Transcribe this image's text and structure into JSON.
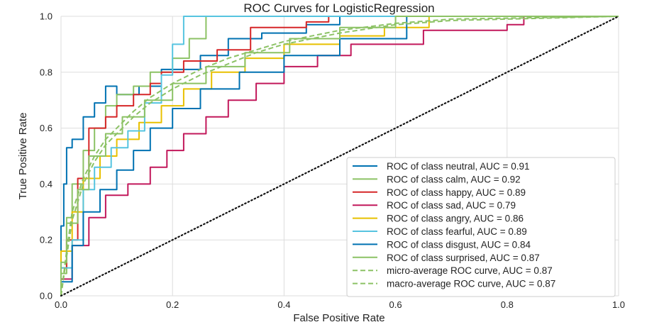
{
  "chart_data": {
    "type": "line",
    "title": "ROC Curves for LogisticRegression",
    "xlabel": "False Positive Rate",
    "ylabel": "True Positive Rate",
    "xlim": [
      0,
      1
    ],
    "ylim": [
      0,
      1
    ],
    "grid": true,
    "legend_position": "lower-right",
    "x_ticks": [
      0.0,
      0.2,
      0.4,
      0.6,
      0.8,
      1.0
    ],
    "x_tick_labels": [
      "0.0",
      "0.2",
      "0.4",
      "0.6",
      "0.8",
      "1.0"
    ],
    "y_ticks": [
      0.0,
      0.2,
      0.4,
      0.6,
      0.8,
      1.0
    ],
    "y_tick_labels": [
      "0.0",
      "0.2",
      "0.4",
      "0.6",
      "0.8",
      "1.0"
    ],
    "series": [
      {
        "name": "ROC of class neutral, AUC = 0.91",
        "color": "#0072B2",
        "dash": "solid",
        "x": [
          0,
          0,
          0.005,
          0.005,
          0.01,
          0.01,
          0.02,
          0.02,
          0.04,
          0.04,
          0.06,
          0.06,
          0.08,
          0.08,
          0.1,
          0.1,
          0.14,
          0.14,
          0.18,
          0.18,
          0.25,
          0.25,
          0.3,
          0.3,
          0.36,
          0.36,
          0.44,
          0.44,
          0.5,
          0.5,
          1.0
        ],
        "y": [
          0,
          0.25,
          0.25,
          0.4,
          0.4,
          0.53,
          0.53,
          0.56,
          0.56,
          0.64,
          0.64,
          0.69,
          0.69,
          0.75,
          0.75,
          0.72,
          0.72,
          0.75,
          0.75,
          0.81,
          0.81,
          0.86,
          0.86,
          0.92,
          0.92,
          0.94,
          0.94,
          0.97,
          0.97,
          1.0,
          1.0
        ]
      },
      {
        "name": "ROC of class calm, AUC = 0.92",
        "color": "#8CC265",
        "dash": "solid",
        "x": [
          0,
          0,
          0.01,
          0.01,
          0.02,
          0.02,
          0.04,
          0.04,
          0.06,
          0.06,
          0.08,
          0.08,
          0.1,
          0.1,
          0.13,
          0.13,
          0.16,
          0.16,
          0.2,
          0.2,
          0.23,
          0.23,
          0.26,
          0.26,
          1.0
        ],
        "y": [
          0,
          0.08,
          0.08,
          0.28,
          0.28,
          0.4,
          0.4,
          0.52,
          0.52,
          0.6,
          0.6,
          0.68,
          0.68,
          0.72,
          0.72,
          0.75,
          0.75,
          0.8,
          0.8,
          0.85,
          0.85,
          0.92,
          0.92,
          1.0,
          1.0
        ]
      },
      {
        "name": "ROC of class happy, AUC = 0.89",
        "color": "#D62728",
        "dash": "solid",
        "x": [
          0,
          0,
          0.01,
          0.01,
          0.03,
          0.03,
          0.05,
          0.05,
          0.08,
          0.08,
          0.1,
          0.1,
          0.13,
          0.13,
          0.16,
          0.16,
          0.18,
          0.18,
          0.22,
          0.22,
          0.28,
          0.28,
          0.34,
          0.34,
          0.44,
          0.44,
          0.48,
          0.48,
          1.0
        ],
        "y": [
          0,
          0.1,
          0.1,
          0.2,
          0.2,
          0.42,
          0.42,
          0.6,
          0.6,
          0.64,
          0.64,
          0.68,
          0.68,
          0.72,
          0.72,
          0.76,
          0.76,
          0.8,
          0.8,
          0.84,
          0.84,
          0.88,
          0.88,
          0.96,
          0.96,
          0.98,
          0.98,
          1.0,
          1.0
        ]
      },
      {
        "name": "ROC of class sad, AUC = 0.79",
        "color": "#C2185B",
        "dash": "solid",
        "x": [
          0,
          0,
          0.02,
          0.02,
          0.05,
          0.05,
          0.08,
          0.08,
          0.12,
          0.12,
          0.16,
          0.16,
          0.19,
          0.19,
          0.22,
          0.22,
          0.26,
          0.26,
          0.3,
          0.3,
          0.35,
          0.35,
          0.4,
          0.4,
          0.46,
          0.46,
          0.52,
          0.52,
          0.65,
          0.65,
          0.8,
          0.8,
          0.83,
          0.83,
          1.0
        ],
        "y": [
          0,
          0.06,
          0.06,
          0.18,
          0.18,
          0.28,
          0.28,
          0.36,
          0.36,
          0.4,
          0.4,
          0.46,
          0.46,
          0.52,
          0.52,
          0.58,
          0.58,
          0.64,
          0.64,
          0.7,
          0.7,
          0.76,
          0.76,
          0.82,
          0.82,
          0.86,
          0.86,
          0.9,
          0.9,
          0.95,
          0.95,
          0.97,
          0.97,
          1.0,
          1.0
        ]
      },
      {
        "name": "ROC of class angry, AUC = 0.86",
        "color": "#E8C000",
        "dash": "solid",
        "x": [
          0,
          0,
          0.02,
          0.02,
          0.04,
          0.04,
          0.07,
          0.07,
          0.1,
          0.1,
          0.14,
          0.14,
          0.18,
          0.18,
          0.22,
          0.22,
          0.27,
          0.27,
          0.33,
          0.33,
          0.4,
          0.4,
          0.5,
          0.5,
          0.58,
          0.58,
          0.66,
          0.66,
          1.0
        ],
        "y": [
          0,
          0.16,
          0.16,
          0.3,
          0.3,
          0.42,
          0.42,
          0.5,
          0.5,
          0.56,
          0.56,
          0.62,
          0.62,
          0.68,
          0.68,
          0.74,
          0.74,
          0.8,
          0.8,
          0.85,
          0.85,
          0.9,
          0.9,
          0.93,
          0.93,
          0.96,
          0.96,
          1.0,
          1.0
        ]
      },
      {
        "name": "ROC of class fearful, AUC = 0.89",
        "color": "#56C4E0",
        "dash": "solid",
        "x": [
          0,
          0,
          0.02,
          0.02,
          0.04,
          0.04,
          0.06,
          0.06,
          0.09,
          0.09,
          0.12,
          0.12,
          0.15,
          0.15,
          0.18,
          0.18,
          0.2,
          0.2,
          0.22,
          0.22,
          1.0
        ],
        "y": [
          0,
          0.1,
          0.1,
          0.2,
          0.2,
          0.38,
          0.38,
          0.46,
          0.46,
          0.53,
          0.53,
          0.59,
          0.59,
          0.69,
          0.69,
          0.79,
          0.79,
          0.9,
          0.9,
          1.0,
          1.0
        ]
      },
      {
        "name": "ROC of class disgust, AUC = 0.84",
        "color": "#0072B2",
        "dash": "solid",
        "x": [
          0,
          0,
          0.02,
          0.02,
          0.04,
          0.04,
          0.07,
          0.07,
          0.1,
          0.1,
          0.13,
          0.13,
          0.16,
          0.16,
          0.2,
          0.2,
          0.25,
          0.25,
          0.32,
          0.32,
          0.4,
          0.4,
          0.5,
          0.5,
          0.62,
          0.62,
          1.0
        ],
        "y": [
          0,
          0.05,
          0.05,
          0.18,
          0.18,
          0.3,
          0.3,
          0.38,
          0.38,
          0.45,
          0.45,
          0.52,
          0.52,
          0.6,
          0.6,
          0.67,
          0.67,
          0.74,
          0.74,
          0.8,
          0.8,
          0.86,
          0.86,
          0.92,
          0.92,
          1.0,
          1.0
        ]
      },
      {
        "name": "ROC of class surprised, AUC = 0.87",
        "color": "#8CC265",
        "dash": "solid",
        "x": [
          0,
          0,
          0.01,
          0.01,
          0.03,
          0.03,
          0.05,
          0.05,
          0.08,
          0.08,
          0.11,
          0.11,
          0.15,
          0.15,
          0.2,
          0.2,
          0.26,
          0.26,
          0.33,
          0.33,
          0.41,
          0.41,
          0.5,
          0.5,
          0.6,
          0.6,
          1.0
        ],
        "y": [
          0,
          0.12,
          0.12,
          0.26,
          0.26,
          0.38,
          0.38,
          0.5,
          0.5,
          0.58,
          0.58,
          0.64,
          0.64,
          0.7,
          0.7,
          0.76,
          0.76,
          0.82,
          0.82,
          0.87,
          0.87,
          0.92,
          0.92,
          0.96,
          0.96,
          1.0,
          1.0
        ]
      },
      {
        "name": "micro-average ROC curve, AUC = 0.87",
        "color": "#8CC265",
        "dash": "dashed",
        "x": [
          0,
          0.01,
          0.02,
          0.04,
          0.06,
          0.08,
          0.1,
          0.13,
          0.16,
          0.2,
          0.25,
          0.3,
          0.35,
          0.4,
          0.5,
          0.6,
          0.7,
          1.0
        ],
        "y": [
          0,
          0.16,
          0.3,
          0.42,
          0.5,
          0.56,
          0.6,
          0.66,
          0.71,
          0.76,
          0.81,
          0.85,
          0.88,
          0.91,
          0.95,
          0.975,
          0.99,
          1.0
        ]
      },
      {
        "name": "macro-average ROC curve, AUC = 0.87",
        "color": "#8CC265",
        "dash": "dashed",
        "x": [
          0,
          0.01,
          0.02,
          0.04,
          0.06,
          0.08,
          0.1,
          0.13,
          0.16,
          0.2,
          0.25,
          0.3,
          0.35,
          0.4,
          0.5,
          0.6,
          0.7,
          1.0
        ],
        "y": [
          0,
          0.14,
          0.27,
          0.4,
          0.48,
          0.54,
          0.58,
          0.64,
          0.69,
          0.74,
          0.79,
          0.83,
          0.87,
          0.9,
          0.94,
          0.97,
          0.985,
          1.0
        ]
      }
    ],
    "chance_line": {
      "x": [
        0,
        1
      ],
      "y": [
        0,
        1
      ],
      "color": "#111111",
      "dash": "dotted"
    }
  }
}
